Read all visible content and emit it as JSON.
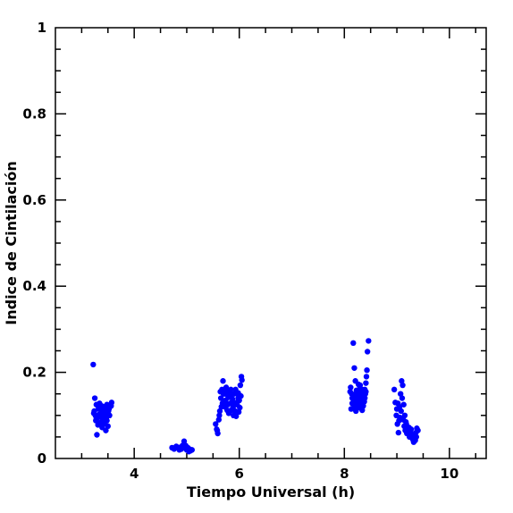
{
  "chart_data": {
    "type": "scatter",
    "title": "",
    "xlabel": "Tiempo Universal (h)",
    "ylabel": "Indice de Cintilación",
    "xlim": [
      2.5,
      10.7
    ],
    "ylim": [
      0,
      1
    ],
    "xticks": [
      4,
      6,
      8,
      10
    ],
    "xtick_labels": [
      "4",
      "6",
      "8",
      "10"
    ],
    "yticks": [
      0,
      0.2,
      0.4,
      0.6,
      0.8,
      1
    ],
    "ytick_labels": [
      "0",
      "0.2",
      "0.4",
      "0.6",
      "0.8",
      "1"
    ],
    "grid": false,
    "legend": "none",
    "marker_color": "#0000ff",
    "series": [
      {
        "points": [
          [
            3.22,
            0.218
          ],
          [
            3.25,
            0.14
          ],
          [
            3.28,
            0.125
          ],
          [
            3.24,
            0.11
          ],
          [
            3.26,
            0.1
          ],
          [
            3.3,
            0.095
          ],
          [
            3.32,
            0.115
          ],
          [
            3.27,
            0.088
          ],
          [
            3.31,
            0.078
          ],
          [
            3.29,
            0.055
          ],
          [
            3.34,
            0.128
          ],
          [
            3.36,
            0.118
          ],
          [
            3.38,
            0.108
          ],
          [
            3.35,
            0.098
          ],
          [
            3.4,
            0.092
          ],
          [
            3.42,
            0.12
          ],
          [
            3.44,
            0.112
          ],
          [
            3.37,
            0.085
          ],
          [
            3.41,
            0.08
          ],
          [
            3.45,
            0.102
          ],
          [
            3.47,
            0.095
          ],
          [
            3.49,
            0.118
          ],
          [
            3.51,
            0.11
          ],
          [
            3.48,
            0.088
          ],
          [
            3.53,
            0.1
          ],
          [
            3.55,
            0.125
          ],
          [
            3.57,
            0.13
          ],
          [
            3.5,
            0.075
          ],
          [
            3.46,
            0.065
          ],
          [
            3.39,
            0.072
          ],
          [
            3.23,
            0.105
          ],
          [
            3.33,
            0.102
          ],
          [
            3.43,
            0.098
          ],
          [
            3.52,
            0.115
          ],
          [
            3.56,
            0.122
          ],
          [
            3.28,
            0.092
          ],
          [
            3.38,
            0.122
          ],
          [
            3.48,
            0.125
          ],
          [
            3.33,
            0.082
          ],
          [
            3.44,
            0.085
          ],
          [
            4.72,
            0.025
          ],
          [
            4.76,
            0.022
          ],
          [
            4.8,
            0.028
          ],
          [
            4.84,
            0.024
          ],
          [
            4.88,
            0.026
          ],
          [
            4.92,
            0.03
          ],
          [
            4.95,
            0.04
          ],
          [
            4.98,
            0.03
          ],
          [
            5.0,
            0.02
          ],
          [
            5.02,
            0.025
          ],
          [
            5.05,
            0.022
          ],
          [
            5.07,
            0.018
          ],
          [
            5.1,
            0.02
          ],
          [
            4.9,
            0.022
          ],
          [
            4.82,
            0.026
          ],
          [
            4.96,
            0.028
          ],
          [
            5.04,
            0.016
          ],
          [
            4.86,
            0.02
          ],
          [
            5.55,
            0.08
          ],
          [
            5.57,
            0.068
          ],
          [
            5.59,
            0.058
          ],
          [
            5.61,
            0.09
          ],
          [
            5.63,
            0.11
          ],
          [
            5.65,
            0.14
          ],
          [
            5.67,
            0.16
          ],
          [
            5.69,
            0.18
          ],
          [
            5.7,
            0.15
          ],
          [
            5.72,
            0.12
          ],
          [
            5.74,
            0.135
          ],
          [
            5.76,
            0.155
          ],
          [
            5.78,
            0.125
          ],
          [
            5.8,
            0.105
          ],
          [
            5.82,
            0.145
          ],
          [
            5.84,
            0.16
          ],
          [
            5.86,
            0.13
          ],
          [
            5.88,
            0.118
          ],
          [
            5.9,
            0.15
          ],
          [
            5.92,
            0.11
          ],
          [
            5.94,
            0.098
          ],
          [
            5.96,
            0.125
          ],
          [
            5.98,
            0.14
          ],
          [
            6.0,
            0.135
          ],
          [
            6.02,
            0.17
          ],
          [
            6.04,
            0.19
          ],
          [
            6.05,
            0.182
          ],
          [
            6.03,
            0.145
          ],
          [
            6.01,
            0.118
          ],
          [
            5.99,
            0.108
          ],
          [
            5.97,
            0.15
          ],
          [
            5.95,
            0.13
          ],
          [
            5.93,
            0.16
          ],
          [
            5.91,
            0.125
          ],
          [
            5.89,
            0.1
          ],
          [
            5.87,
            0.138
          ],
          [
            5.85,
            0.112
          ],
          [
            5.83,
            0.128
          ],
          [
            5.81,
            0.155
          ],
          [
            5.79,
            0.142
          ],
          [
            5.77,
            0.112
          ],
          [
            5.75,
            0.165
          ],
          [
            5.73,
            0.15
          ],
          [
            5.71,
            0.132
          ],
          [
            5.66,
            0.12
          ],
          [
            5.62,
            0.1
          ],
          [
            5.58,
            0.065
          ],
          [
            5.64,
            0.155
          ],
          [
            5.68,
            0.128
          ],
          [
            5.98,
            0.152
          ],
          [
            8.12,
            0.165
          ],
          [
            8.14,
            0.15
          ],
          [
            8.16,
            0.14
          ],
          [
            8.18,
            0.13
          ],
          [
            8.2,
            0.12
          ],
          [
            8.22,
            0.11
          ],
          [
            8.24,
            0.135
          ],
          [
            8.26,
            0.148
          ],
          [
            8.28,
            0.16
          ],
          [
            8.3,
            0.17
          ],
          [
            8.17,
            0.268
          ],
          [
            8.19,
            0.21
          ],
          [
            8.21,
            0.18
          ],
          [
            8.23,
            0.158
          ],
          [
            8.25,
            0.145
          ],
          [
            8.27,
            0.125
          ],
          [
            8.29,
            0.118
          ],
          [
            8.31,
            0.138
          ],
          [
            8.33,
            0.152
          ],
          [
            8.35,
            0.128
          ],
          [
            8.37,
            0.145
          ],
          [
            8.39,
            0.16
          ],
          [
            8.41,
            0.175
          ],
          [
            8.43,
            0.205
          ],
          [
            8.44,
            0.248
          ],
          [
            8.46,
            0.273
          ],
          [
            8.42,
            0.19
          ],
          [
            8.4,
            0.15
          ],
          [
            8.38,
            0.132
          ],
          [
            8.36,
            0.122
          ],
          [
            8.34,
            0.16
          ],
          [
            8.32,
            0.142
          ],
          [
            8.15,
            0.128
          ],
          [
            8.13,
            0.115
          ],
          [
            8.11,
            0.155
          ],
          [
            8.27,
            0.172
          ],
          [
            8.24,
            0.118
          ],
          [
            8.29,
            0.132
          ],
          [
            8.34,
            0.112
          ],
          [
            8.39,
            0.14
          ],
          [
            8.21,
            0.135
          ],
          [
            8.18,
            0.148
          ],
          [
            8.26,
            0.125
          ],
          [
            8.31,
            0.158
          ],
          [
            8.36,
            0.148
          ],
          [
            8.41,
            0.155
          ],
          [
            8.23,
            0.142
          ],
          [
            8.15,
            0.14
          ],
          [
            8.95,
            0.16
          ],
          [
            8.97,
            0.13
          ],
          [
            8.99,
            0.1
          ],
          [
            9.01,
            0.08
          ],
          [
            9.03,
            0.06
          ],
          [
            9.0,
            0.115
          ],
          [
            9.05,
            0.12
          ],
          [
            9.07,
            0.15
          ],
          [
            9.09,
            0.18
          ],
          [
            9.11,
            0.17
          ],
          [
            9.1,
            0.14
          ],
          [
            9.08,
            0.11
          ],
          [
            9.06,
            0.095
          ],
          [
            9.12,
            0.09
          ],
          [
            9.14,
            0.075
          ],
          [
            9.16,
            0.065
          ],
          [
            9.18,
            0.08
          ],
          [
            9.2,
            0.07
          ],
          [
            9.22,
            0.06
          ],
          [
            9.24,
            0.05
          ],
          [
            9.26,
            0.065
          ],
          [
            9.28,
            0.055
          ],
          [
            9.3,
            0.045
          ],
          [
            9.32,
            0.038
          ],
          [
            9.34,
            0.05
          ],
          [
            9.36,
            0.06
          ],
          [
            9.38,
            0.07
          ],
          [
            9.4,
            0.065
          ],
          [
            9.13,
            0.125
          ],
          [
            9.15,
            0.1
          ],
          [
            9.02,
            0.128
          ],
          [
            9.04,
            0.088
          ],
          [
            9.19,
            0.058
          ],
          [
            9.23,
            0.072
          ],
          [
            9.27,
            0.068
          ],
          [
            9.31,
            0.055
          ],
          [
            9.35,
            0.042
          ],
          [
            9.37,
            0.05
          ],
          [
            9.25,
            0.058
          ],
          [
            9.17,
            0.085
          ]
        ]
      }
    ]
  }
}
